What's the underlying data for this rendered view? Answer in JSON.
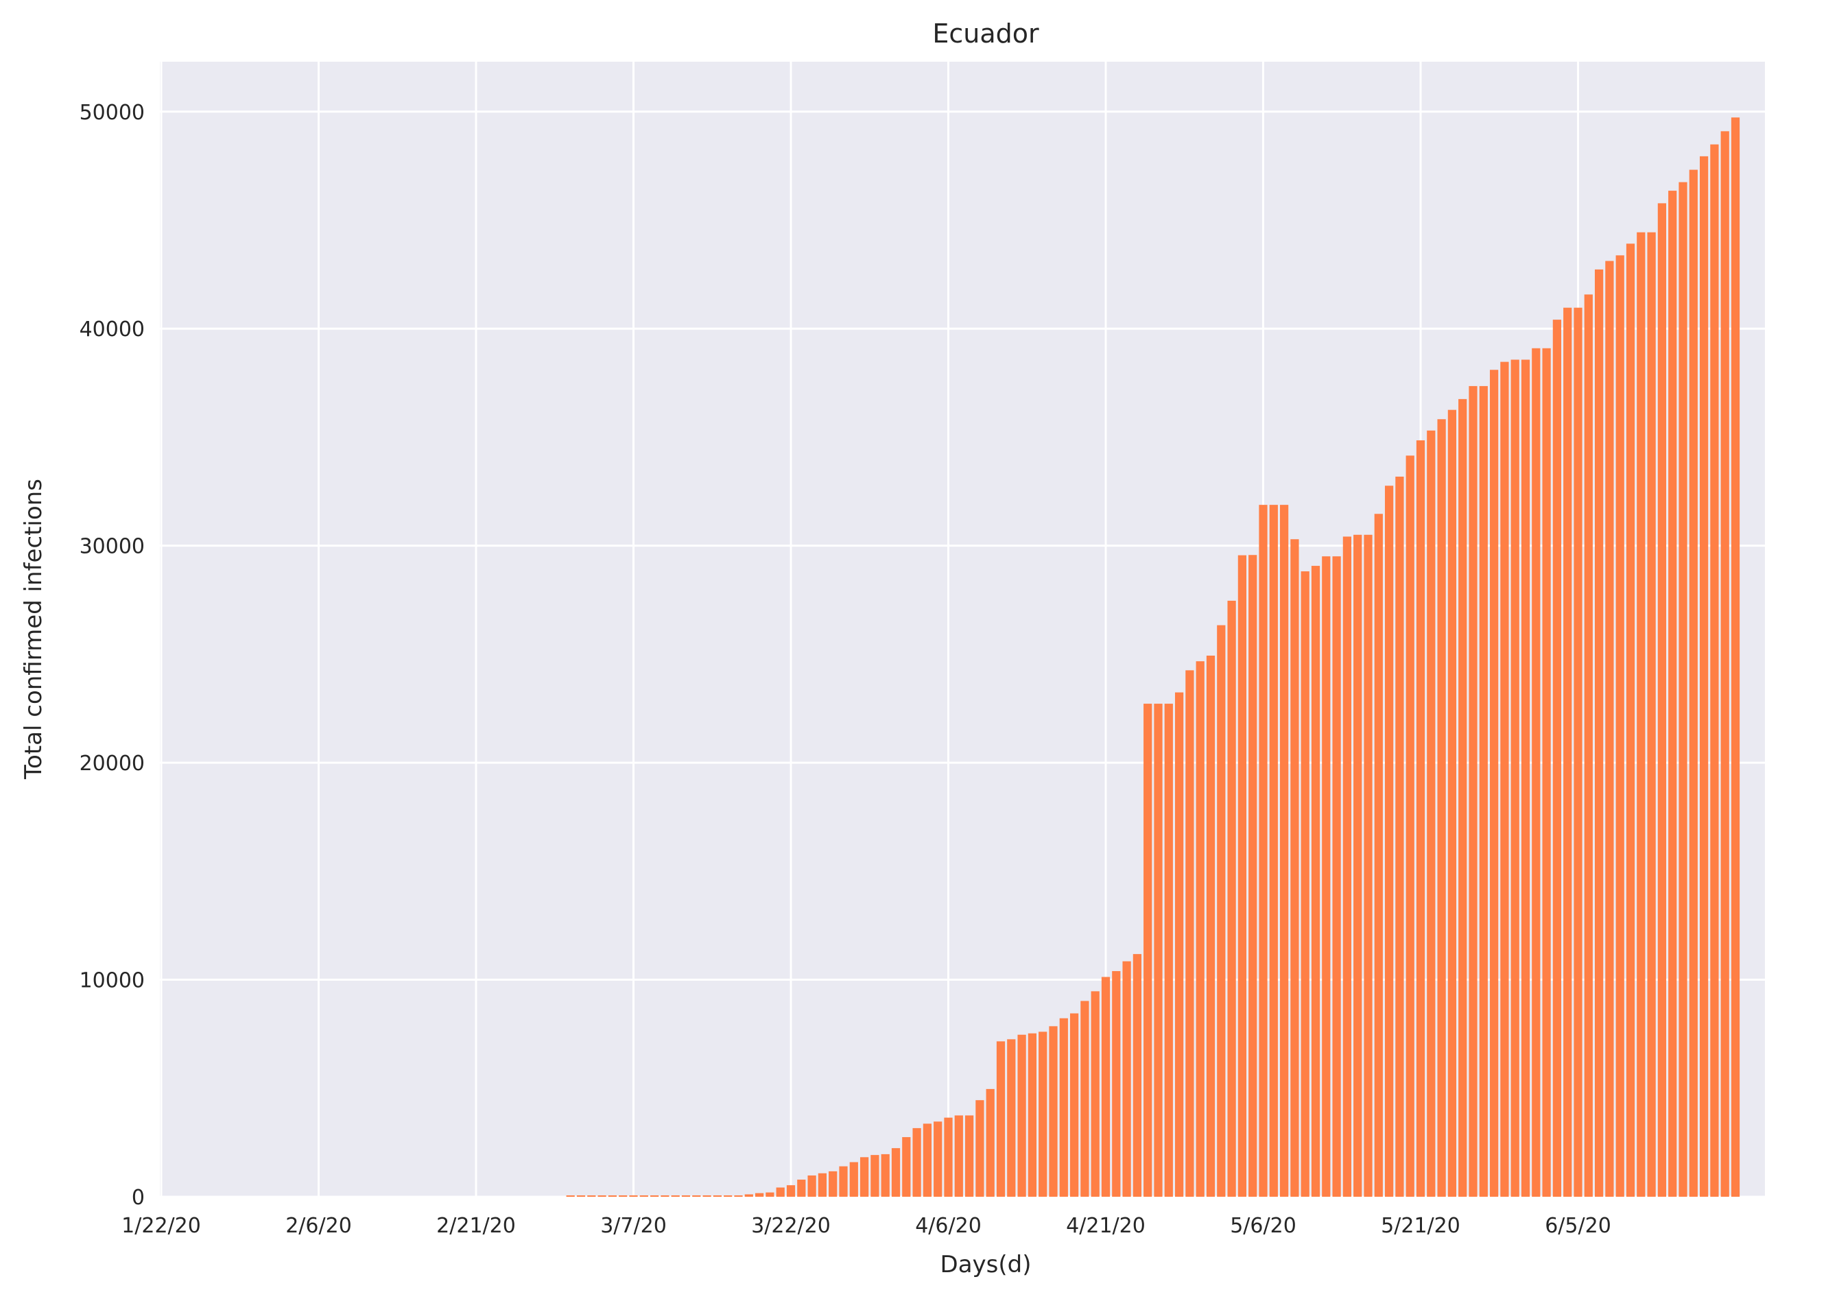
{
  "chart_data": {
    "type": "bar",
    "title": "Ecuador",
    "xlabel": "Days(d)",
    "ylabel": "Total confirmed infections",
    "start_date": "2020-01-22",
    "x_tick_labels": [
      "1/22/20",
      "2/6/20",
      "2/21/20",
      "3/7/20",
      "3/22/20",
      "4/6/20",
      "4/21/20",
      "5/6/20",
      "5/21/20",
      "6/5/20"
    ],
    "y_ticks": [
      0,
      10000,
      20000,
      30000,
      40000,
      50000
    ],
    "ylim": [
      0,
      52300
    ],
    "grid": true,
    "background": "#eaeaf2",
    "bar_color": "#ff7f45",
    "values": [
      0,
      0,
      0,
      0,
      0,
      0,
      0,
      0,
      0,
      0,
      0,
      0,
      0,
      0,
      0,
      0,
      0,
      0,
      0,
      0,
      0,
      0,
      0,
      0,
      0,
      0,
      0,
      0,
      0,
      0,
      0,
      0,
      0,
      0,
      0,
      0,
      0,
      0,
      0,
      1,
      6,
      7,
      10,
      13,
      13,
      13,
      14,
      15,
      15,
      17,
      17,
      17,
      28,
      28,
      37,
      58,
      111,
      168,
      199,
      426,
      532,
      789,
      981,
      1082,
      1173,
      1403,
      1595,
      1823,
      1924,
      1962,
      2240,
      2748,
      3163,
      3368,
      3465,
      3646,
      3747,
      3747,
      4450,
      4965,
      7161,
      7257,
      7466,
      7529,
      7603,
      7858,
      8225,
      8450,
      9022,
      9468,
      10128,
      10398,
      10850,
      11183,
      22719,
      22719,
      22719,
      23240,
      24258,
      24675,
      24934,
      26336,
      27464,
      29559,
      29571,
      31881,
      31881,
      31881,
      30298,
      28818,
      29071,
      29509,
      29509,
      30419,
      30502,
      30502,
      31467,
      32763,
      33182,
      34151,
      34854,
      35306,
      35828,
      36258,
      36756,
      37355,
      37355,
      38103,
      38471,
      38571,
      38571,
      39098,
      39098,
      40414,
      40966,
      40966,
      41575,
      42728,
      43120,
      43378,
      43917,
      44440,
      44440,
      45778,
      46356,
      46751,
      47322,
      47943,
      48490,
      49097,
      49731
    ]
  }
}
